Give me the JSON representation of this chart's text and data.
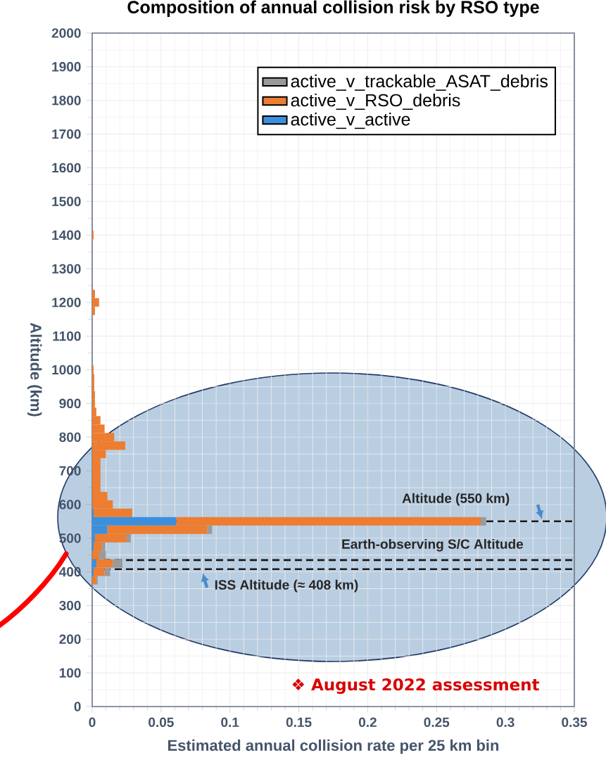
{
  "chart_data": {
    "type": "bar",
    "orientation": "horizontal",
    "stacked": true,
    "title": "Composition of annual collision risk by RSO type",
    "xlabel": "Estimated annual collision rate per 25 km bin",
    "ylabel": "Altitude (km)",
    "x": [
      375,
      400,
      425,
      450,
      475,
      500,
      525,
      550,
      575,
      600,
      625,
      650,
      675,
      700,
      725,
      750,
      775,
      800,
      825,
      850,
      875,
      900,
      925,
      950,
      975,
      1000,
      1175,
      1200,
      1225,
      1400
    ],
    "series": [
      {
        "name": "active_v_active",
        "color": "#3d8fdb",
        "values": [
          0,
          0.001,
          0.003,
          0,
          0.001,
          0.002,
          0.011,
          0.061,
          0.001,
          0,
          0,
          0,
          0,
          0,
          0,
          0,
          0,
          0,
          0,
          0,
          0,
          0,
          0,
          0,
          0,
          0,
          0,
          0,
          0,
          0
        ]
      },
      {
        "name": "active_v_RSO_debris",
        "color": "#ed7d31",
        "values": [
          0.003,
          0.008,
          0.012,
          0.005,
          0.006,
          0.023,
          0.0725,
          0.221,
          0.028,
          0.015,
          0.011,
          0.006,
          0.006,
          0.006,
          0.006,
          0.01,
          0.024,
          0.016,
          0.009,
          0.006,
          0.003,
          0.002,
          0.002,
          0.0015,
          0.0015,
          0.001,
          0.002,
          0.005,
          0.002,
          0.001
        ]
      },
      {
        "name": "active_v_trackable_ASAT_debris",
        "color": "#9a9a9a",
        "values": [
          0.001,
          0.004,
          0.007,
          0.005,
          0.0025,
          0.003,
          0.0035,
          0.004,
          0,
          0,
          0,
          0,
          0,
          0,
          0,
          0,
          0,
          0,
          0,
          0,
          0,
          0,
          0,
          0,
          0,
          0,
          0,
          0,
          0,
          0
        ]
      }
    ],
    "xlim": [
      0,
      0.35
    ],
    "xticks": [
      0,
      0.05,
      0.1,
      0.15,
      0.2,
      0.25,
      0.3,
      0.35
    ],
    "ylim": [
      0,
      2000
    ],
    "yticks": [
      0,
      100,
      200,
      300,
      400,
      500,
      600,
      700,
      800,
      900,
      1000,
      1100,
      1200,
      1300,
      1400,
      1500,
      1600,
      1700,
      1800,
      1900,
      2000
    ],
    "ref_lines": [
      {
        "axis": "y",
        "value": 550,
        "label": "Altitude (550 km)",
        "line_style": "dashed",
        "color": "#1a1a1a"
      },
      {
        "axis": "y",
        "value": 435,
        "label": "Earth-observing S/C Altitude",
        "line_style": "dashed",
        "color": "#1a1a1a"
      },
      {
        "axis": "y",
        "value": 408,
        "label": "ISS Altitude (≈ 408 km)",
        "line_style": "dashed",
        "color": "#1a1a1a"
      }
    ],
    "annotations": [
      "❖ August 2022 assessment"
    ],
    "grid": true,
    "legend": "top right"
  }
}
